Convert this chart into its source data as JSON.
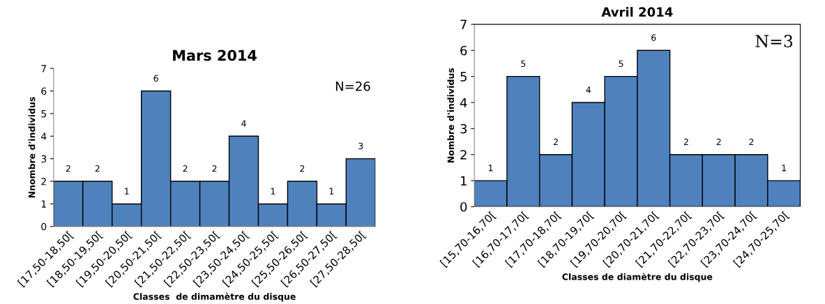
{
  "chart_data": [
    {
      "type": "bar",
      "title": "Mars 2014",
      "xlabel": "Classes  de dimamètre du disque",
      "ylabel": "Nnombre d'individus",
      "categories": [
        "[17,50-18,50[",
        "[18,50-19,50[",
        "[19,50-20,50[",
        "[20,50-21,50[",
        "[21,50-22,50[",
        "[22,50-23,50[",
        "[23,50-24,50[",
        "[24,50-25,50[",
        "[25,50-26,50[",
        "[26,50-27,50[",
        "[27,50-28,50["
      ],
      "values": [
        2,
        2,
        1,
        6,
        2,
        2,
        4,
        1,
        2,
        1,
        3
      ],
      "color": "#4f81bd",
      "ylim": [
        0,
        7
      ],
      "yticks": [
        0,
        1,
        2,
        3,
        4,
        5,
        6,
        7
      ],
      "data_labels": true,
      "grid": false,
      "legend": false,
      "annotations": [
        "N=26"
      ]
    },
    {
      "type": "bar",
      "title": "Avril 2014",
      "xlabel": "Classes de diamètre du disque",
      "ylabel": "Nombre d'individus",
      "categories": [
        "[15,70-16,70[",
        "[16,70-17,70[",
        "[17,70-18,70[",
        "[18,70-19,70[",
        "[19,70-20,70[",
        "[20,70-21,70[",
        "[21,70-22,70[",
        "[22,70-23,70[",
        "[23,70-24,70[",
        "[24,70-25,70["
      ],
      "values": [
        1,
        5,
        2,
        4,
        5,
        6,
        2,
        2,
        2,
        1
      ],
      "color": "#4f81bd",
      "ylim": [
        0,
        7
      ],
      "yticks": [
        0,
        1,
        2,
        3,
        4,
        5,
        6,
        7
      ],
      "data_labels": true,
      "grid": false,
      "legend": false,
      "annotations": [
        "N=3"
      ]
    }
  ]
}
